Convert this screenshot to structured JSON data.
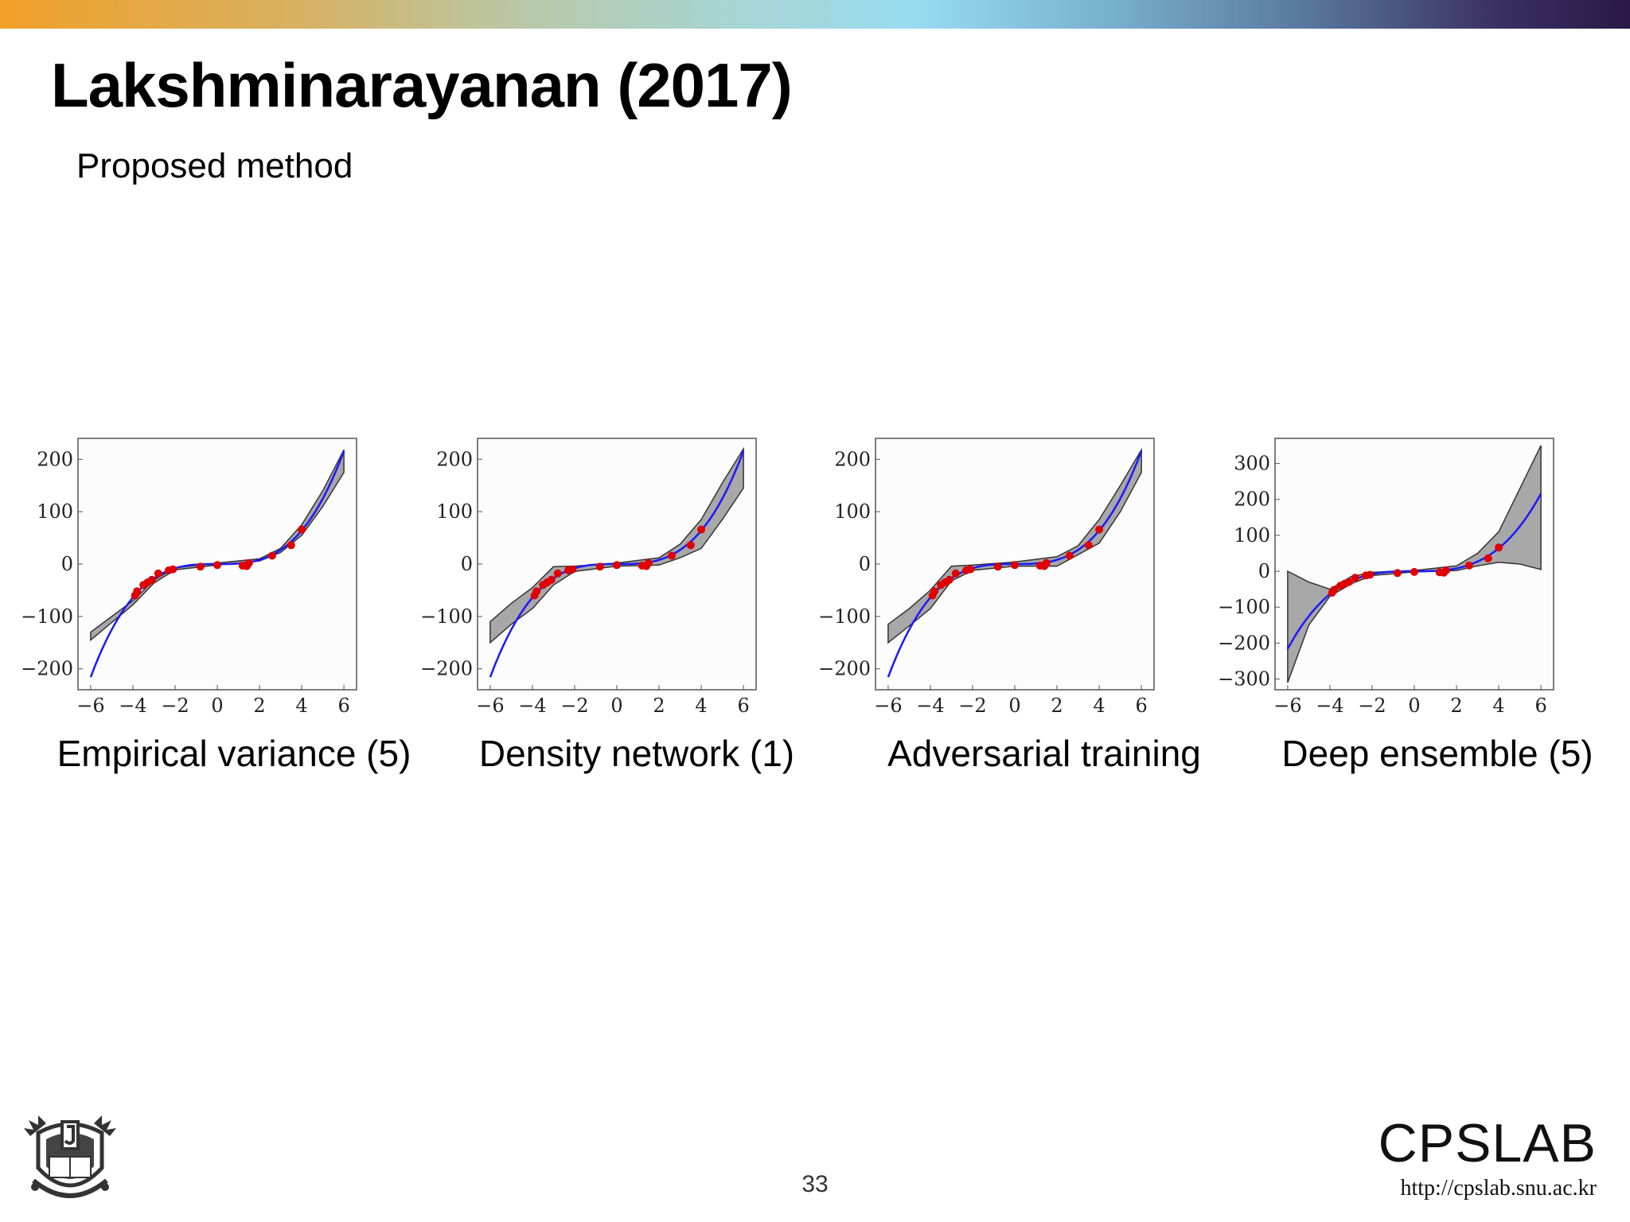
{
  "header": {
    "title": "Lakshminarayanan (2017)",
    "subtitle": "Proposed method"
  },
  "footer": {
    "page_number": "33",
    "lab_name": "CPSLAB",
    "lab_url": "http://cpslab.snu.ac.kr"
  },
  "colors": {
    "mean_line": "#1a1aff",
    "data_points": "#e00000",
    "uncertainty_band": "#a8a8a8"
  },
  "chart_data": [
    {
      "type": "line",
      "title": "Empirical variance (5)",
      "xlabel": "",
      "ylabel": "",
      "xlim": [
        -6.6,
        6.6
      ],
      "ylim": [
        -240,
        240
      ],
      "xticks": [
        -6,
        -4,
        -2,
        0,
        2,
        4,
        6
      ],
      "xtick_labels": [
        "−6",
        "−4",
        "−2",
        "0",
        "2",
        "4",
        "6"
      ],
      "yticks": [
        200,
        100,
        0,
        -100,
        -200
      ],
      "ytick_labels": [
        "200",
        "100",
        "0",
        "−100",
        "−200"
      ],
      "mean": {
        "x": [
          -6,
          -5,
          -4,
          -3,
          -2,
          -1,
          0,
          1,
          2,
          3,
          4,
          5,
          6
        ],
        "y": [
          -216,
          -125,
          -64,
          -27,
          -8,
          -1,
          0,
          1,
          8,
          27,
          64,
          125,
          216
        ]
      },
      "band": {
        "x": [
          -6,
          -4,
          -3,
          -2,
          0,
          2,
          3,
          4,
          5,
          6
        ],
        "upper": [
          -130,
          -70,
          -30,
          -7,
          2,
          10,
          30,
          75,
          140,
          218
        ],
        "lower": [
          -145,
          -78,
          -36,
          -11,
          -2,
          6,
          22,
          55,
          110,
          175
        ]
      },
      "points": {
        "x": [
          -3.9,
          -3.8,
          -3.5,
          -3.3,
          -3.1,
          -2.8,
          -2.3,
          -2.1,
          -0.8,
          0,
          1.2,
          1.4,
          1.5,
          2.6,
          3.5,
          4.0
        ],
        "y": [
          -60,
          -52,
          -40,
          -35,
          -30,
          -18,
          -12,
          -10,
          -5,
          -2,
          -3,
          -4,
          2,
          16,
          36,
          66
        ]
      }
    },
    {
      "type": "line",
      "title": "Density network (1)",
      "xlabel": "",
      "ylabel": "",
      "xlim": [
        -6.6,
        6.6
      ],
      "ylim": [
        -240,
        240
      ],
      "xticks": [
        -6,
        -4,
        -2,
        0,
        2,
        4,
        6
      ],
      "xtick_labels": [
        "−6",
        "−4",
        "−2",
        "0",
        "2",
        "4",
        "6"
      ],
      "yticks": [
        200,
        100,
        0,
        -100,
        -200
      ],
      "ytick_labels": [
        "200",
        "100",
        "0",
        "−100",
        "−200"
      ],
      "mean": {
        "x": [
          -6,
          -5,
          -4,
          -3,
          -2,
          -1,
          0,
          1,
          2,
          3,
          4,
          5,
          6
        ],
        "y": [
          -216,
          -125,
          -64,
          -27,
          -8,
          -1,
          0,
          1,
          8,
          27,
          64,
          125,
          216
        ]
      },
      "band": {
        "x": [
          -6,
          -5,
          -4,
          -3,
          -2,
          0,
          2,
          3,
          4,
          5,
          6
        ],
        "upper": [
          -110,
          -75,
          -45,
          -5,
          -4,
          2,
          12,
          38,
          85,
          155,
          220
        ],
        "lower": [
          -150,
          -115,
          -85,
          -40,
          -14,
          -4,
          -2,
          12,
          30,
          85,
          145
        ]
      },
      "points": {
        "x": [
          -3.9,
          -3.8,
          -3.5,
          -3.3,
          -3.1,
          -2.8,
          -2.3,
          -2.1,
          -0.8,
          0,
          1.2,
          1.4,
          1.5,
          2.6,
          3.5,
          4.0
        ],
        "y": [
          -60,
          -52,
          -40,
          -35,
          -30,
          -18,
          -12,
          -10,
          -5,
          -2,
          -3,
          -4,
          2,
          16,
          36,
          66
        ]
      }
    },
    {
      "type": "line",
      "title": "Adversarial training",
      "xlabel": "",
      "ylabel": "",
      "xlim": [
        -6.6,
        6.6
      ],
      "ylim": [
        -240,
        240
      ],
      "xticks": [
        -6,
        -4,
        -2,
        0,
        2,
        4,
        6
      ],
      "xtick_labels": [
        "−6",
        "−4",
        "−2",
        "0",
        "2",
        "4",
        "6"
      ],
      "yticks": [
        200,
        100,
        0,
        -100,
        -200
      ],
      "ytick_labels": [
        "200",
        "100",
        "0",
        "−100",
        "−200"
      ],
      "mean": {
        "x": [
          -6,
          -5,
          -4,
          -3,
          -2,
          -1,
          0,
          1,
          2,
          3,
          4,
          5,
          6
        ],
        "y": [
          -216,
          -125,
          -64,
          -27,
          -8,
          -1,
          0,
          1,
          8,
          27,
          64,
          125,
          216
        ]
      },
      "band": {
        "x": [
          -6,
          -5,
          -4,
          -3,
          -2,
          0,
          2,
          3,
          4,
          5,
          6
        ],
        "upper": [
          -115,
          -85,
          -50,
          -4,
          -2,
          4,
          14,
          35,
          85,
          150,
          218
        ],
        "lower": [
          -150,
          -118,
          -85,
          -32,
          -12,
          -4,
          -4,
          18,
          40,
          100,
          175
        ]
      },
      "points": {
        "x": [
          -3.9,
          -3.8,
          -3.5,
          -3.3,
          -3.1,
          -2.8,
          -2.3,
          -2.1,
          -0.8,
          0,
          1.2,
          1.4,
          1.5,
          2.6,
          3.5,
          4.0
        ],
        "y": [
          -60,
          -52,
          -40,
          -35,
          -30,
          -18,
          -12,
          -10,
          -5,
          -2,
          -3,
          -4,
          2,
          16,
          36,
          66
        ]
      }
    },
    {
      "type": "line",
      "title": "Deep ensemble (5)",
      "xlabel": "",
      "ylabel": "",
      "xlim": [
        -6.6,
        6.6
      ],
      "ylim": [
        -330,
        370
      ],
      "xticks": [
        -6,
        -4,
        -2,
        0,
        2,
        4,
        6
      ],
      "xtick_labels": [
        "−6",
        "−4",
        "−2",
        "0",
        "2",
        "4",
        "6"
      ],
      "yticks": [
        300,
        200,
        100,
        0,
        -100,
        -200,
        -300
      ],
      "ytick_labels": [
        "300",
        "200",
        "100",
        "0",
        "−100",
        "−200",
        "−300"
      ],
      "mean": {
        "x": [
          -6,
          -5,
          -4,
          -3,
          -2,
          -1,
          0,
          1,
          2,
          3,
          4,
          5,
          6
        ],
        "y": [
          -216,
          -125,
          -64,
          -27,
          -8,
          -1,
          0,
          1,
          8,
          27,
          64,
          125,
          216
        ]
      },
      "band": {
        "x": [
          -6,
          -5,
          -4,
          -3,
          -2,
          0,
          2,
          3,
          4,
          5,
          6
        ],
        "upper": [
          0,
          -30,
          -50,
          -15,
          -3,
          2,
          15,
          50,
          110,
          230,
          350
        ],
        "lower": [
          -310,
          -150,
          -70,
          -35,
          -12,
          -2,
          2,
          15,
          25,
          20,
          5
        ]
      },
      "points": {
        "x": [
          -3.9,
          -3.8,
          -3.5,
          -3.3,
          -3.1,
          -2.8,
          -2.3,
          -2.1,
          -0.8,
          0,
          1.2,
          1.4,
          1.5,
          2.6,
          3.5,
          4.0
        ],
        "y": [
          -60,
          -52,
          -40,
          -35,
          -30,
          -18,
          -12,
          -10,
          -5,
          -2,
          -3,
          -4,
          2,
          16,
          36,
          66
        ]
      }
    }
  ]
}
